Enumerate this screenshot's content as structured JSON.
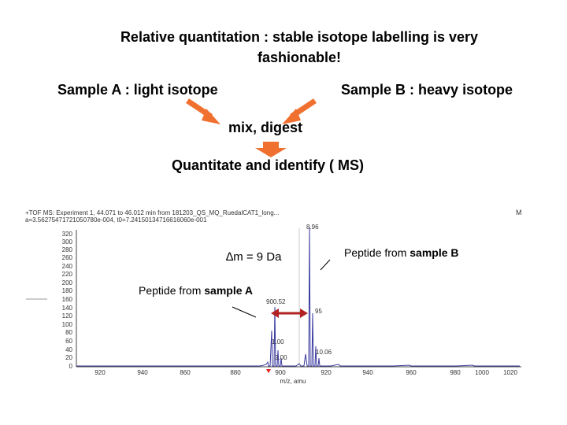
{
  "title": {
    "line1": "Relative quantitation :  stable isotope labelling is very",
    "line2": "fashionable!"
  },
  "sample_a": "Sample A : light isotope",
  "sample_b": "Sample B : heavy isotope",
  "mix": "mix, digest",
  "quantitate": "Quantitate and identify ( MS)",
  "spectrum": {
    "header_line1": "+TOF MS: Experiment 1, 44.071 to 46.012 min from 181203_QS_MQ_RuedalCAT1_long...",
    "header_line2": "a=3.56275471721050780e-004, t0=7.24150134716616060e-001",
    "y_ticks": [
      "320",
      "300",
      "280",
      "260",
      "240",
      "220",
      "200",
      "180",
      "160",
      "140",
      "120",
      "100",
      "80",
      "60",
      "40",
      "20",
      "0"
    ],
    "x_ticks": [
      "920",
      "940",
      "860",
      "880",
      "900",
      "920",
      "940",
      "960",
      "980",
      "1000",
      "1020"
    ],
    "x_label": "m/z, amu",
    "corner": "M",
    "peak_labels": {
      "heavy_top": "8.96",
      "light": "900.52",
      "heavy": "95",
      "light_small": "1.00",
      "heavy_small": "10.06",
      "base_small": "2.00"
    },
    "colors": {
      "axis": "#444444",
      "peak": "#3a3aa0",
      "arrow": "#b22222",
      "flow_arrow": "#f07030"
    }
  },
  "delta_symbol": "∆",
  "delta_text": "m = 9 Da",
  "peptide_b": {
    "prefix": "Peptide from ",
    "bold": "sample B"
  },
  "peptide_a": {
    "prefix": "Peptide from ",
    "bold": "sample A"
  }
}
